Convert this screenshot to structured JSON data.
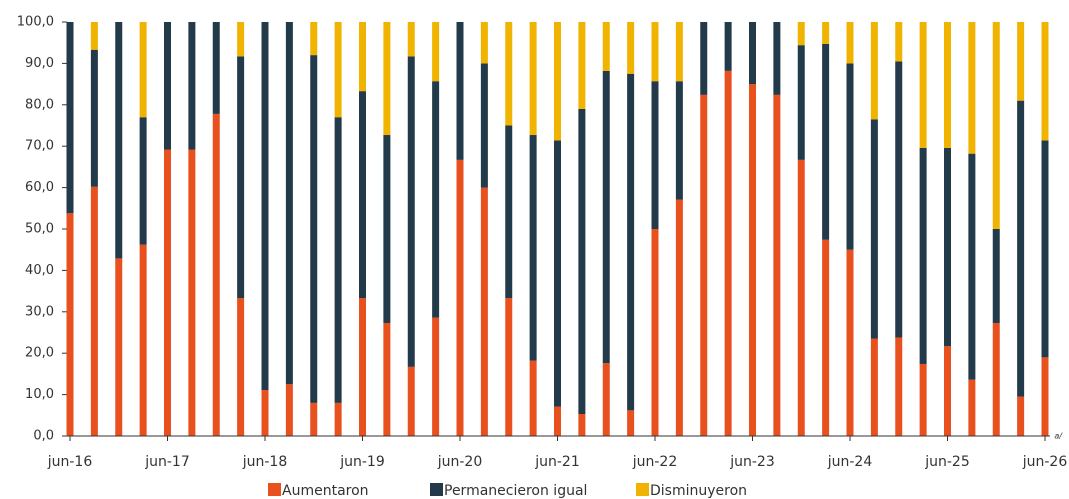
{
  "chart_data": {
    "type": "stacked_bar",
    "categories": [
      "jun-16",
      null,
      null,
      null,
      "jun-17",
      null,
      null,
      null,
      "jun-18",
      null,
      null,
      null,
      "jun-19",
      null,
      null,
      null,
      "jun-20",
      null,
      null,
      null,
      "jun-21",
      null,
      null,
      null,
      "jun-22",
      null,
      null,
      null,
      "jun-23",
      null,
      null,
      null,
      "jun-24",
      null,
      null,
      null,
      "jun-25",
      null,
      null,
      null,
      "jun-26"
    ],
    "series": [
      {
        "name": "Aumentaron",
        "color": "#e8501e",
        "values": [
          53.8,
          60.2,
          42.9,
          46.2,
          69.2,
          69.2,
          77.8,
          33.3,
          11.1,
          12.5,
          8,
          8,
          33.3,
          27.3,
          16.7,
          28.6,
          66.7,
          60,
          33.3,
          18.2,
          7.1,
          5.3,
          17.6,
          6.2,
          50,
          57.1,
          82.4,
          88.2,
          85,
          82.4,
          66.7,
          47.4,
          45,
          23.5,
          23.8,
          17.4,
          21.7,
          13.6,
          27.3,
          9.5,
          19
        ]
      },
      {
        "name": "Permanecieron igual",
        "color": "#233a4a",
        "values": [
          46.2,
          33.1,
          57.1,
          30.8,
          30.8,
          30.8,
          22.2,
          58.4,
          88.9,
          87.5,
          84,
          69,
          50,
          45.4,
          75,
          57.1,
          33.3,
          30,
          41.7,
          54.5,
          64.3,
          73.7,
          70.6,
          81.3,
          35.7,
          28.6,
          17.6,
          11.8,
          15,
          17.6,
          27.7,
          47.3,
          45,
          53,
          66.7,
          52.2,
          47.9,
          54.6,
          22.7,
          71.5,
          52.4
        ]
      },
      {
        "name": "Disminuyeron",
        "color": "#f0b400",
        "values": [
          0,
          6.7,
          0,
          23,
          0,
          0,
          0,
          8.3,
          0,
          0,
          8,
          23,
          16.7,
          27.3,
          8.3,
          14.3,
          0,
          10,
          25,
          27.3,
          28.6,
          21,
          11.8,
          12.5,
          14.3,
          14.3,
          0,
          0,
          0,
          0,
          5.6,
          5.3,
          10,
          23.5,
          9.5,
          30.4,
          30.4,
          31.8,
          50,
          19,
          28.6
        ]
      }
    ],
    "ylim": [
      0,
      100
    ],
    "yticks": [
      {
        "value": 0,
        "label": "0,0"
      },
      {
        "value": 10,
        "label": "10,0"
      },
      {
        "value": 20,
        "label": "20,0"
      },
      {
        "value": 30,
        "label": "30,0"
      },
      {
        "value": 40,
        "label": "40,0"
      },
      {
        "value": 50,
        "label": "50,0"
      },
      {
        "value": 60,
        "label": "60,0"
      },
      {
        "value": 70,
        "label": "70,0"
      },
      {
        "value": 80,
        "label": "80,0"
      },
      {
        "value": 90,
        "label": "90,0"
      },
      {
        "value": 100,
        "label": "100,0"
      }
    ],
    "annotation": "a/",
    "legend": "bottom"
  }
}
